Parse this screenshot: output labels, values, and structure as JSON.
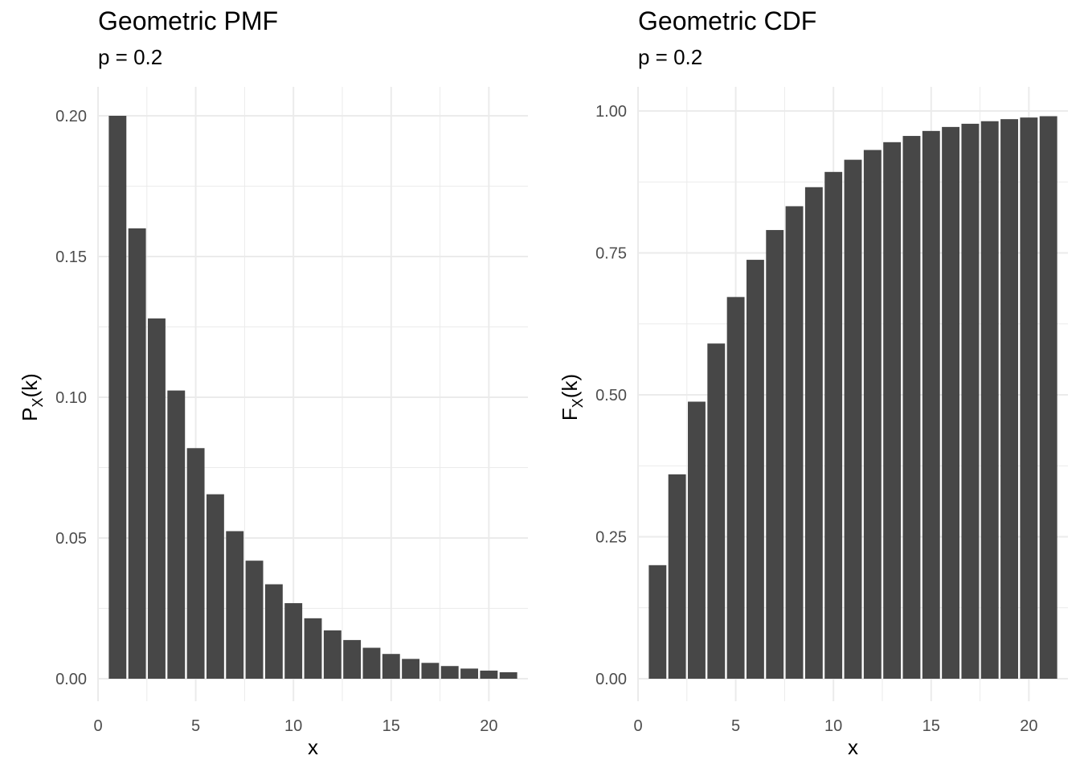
{
  "chart_data": [
    {
      "type": "bar",
      "title": "Geometric PMF",
      "subtitle": "p = 0.2",
      "xlabel": "x",
      "ylabel": {
        "base": "P",
        "sub": "X",
        "rest": "(k)"
      },
      "x": [
        1,
        2,
        3,
        4,
        5,
        6,
        7,
        8,
        9,
        10,
        11,
        12,
        13,
        14,
        15,
        16,
        17,
        18,
        19,
        20,
        21
      ],
      "values": [
        0.2,
        0.16,
        0.128,
        0.1024,
        0.08192,
        0.065536,
        0.0524288,
        0.04194304,
        0.033554432,
        0.0268435456,
        0.02147483648,
        0.017179869184,
        0.0137438953472,
        0.01099511627776,
        0.008796093022208,
        0.0070368744177664,
        0.00562949953421312,
        0.004503599627370496,
        0.0036028797018963967,
        0.0028823037615171173,
        0.002305843009213694
      ],
      "xlim": [
        0,
        22
      ],
      "ylim": [
        0,
        0.21
      ],
      "xticks": [
        0,
        5,
        10,
        15,
        20
      ],
      "xtick_labels": [
        "0",
        "5",
        "10",
        "15",
        "20"
      ],
      "yticks": [
        0,
        0.05,
        0.1,
        0.15,
        0.2
      ],
      "ytick_labels": [
        "0.00",
        "0.05",
        "0.10",
        "0.15",
        "0.20"
      ],
      "grid": true,
      "bar_color": "#474747",
      "grid_color": "#ebebeb"
    },
    {
      "type": "bar",
      "title": "Geometric CDF",
      "subtitle": "p = 0.2",
      "xlabel": "x",
      "ylabel": {
        "base": "F",
        "sub": "X",
        "rest": "(k)"
      },
      "x": [
        1,
        2,
        3,
        4,
        5,
        6,
        7,
        8,
        9,
        10,
        11,
        12,
        13,
        14,
        15,
        16,
        17,
        18,
        19,
        20,
        21
      ],
      "values": [
        0.2,
        0.36,
        0.488,
        0.5904,
        0.67232,
        0.737856,
        0.7902848,
        0.83222784,
        0.865782272,
        0.8926258176,
        0.91410065408,
        0.931280523264,
        0.9450244186112,
        0.95601953488896,
        0.964815627911168,
        0.9718525023289344,
        0.9774820018631475,
        0.981985601490518,
        0.9855884811924144,
        0.9884707849539315,
        0.9907766279631453
      ],
      "xlim": [
        0,
        22
      ],
      "ylim": [
        0,
        1.02
      ],
      "xticks": [
        0,
        5,
        10,
        15,
        20
      ],
      "xtick_labels": [
        "0",
        "5",
        "10",
        "15",
        "20"
      ],
      "yticks": [
        0,
        0.25,
        0.5,
        0.75,
        1.0
      ],
      "ytick_labels": [
        "0.00",
        "0.25",
        "0.50",
        "0.75",
        "1.00"
      ],
      "grid": true,
      "bar_color": "#474747",
      "grid_color": "#ebebeb"
    }
  ]
}
